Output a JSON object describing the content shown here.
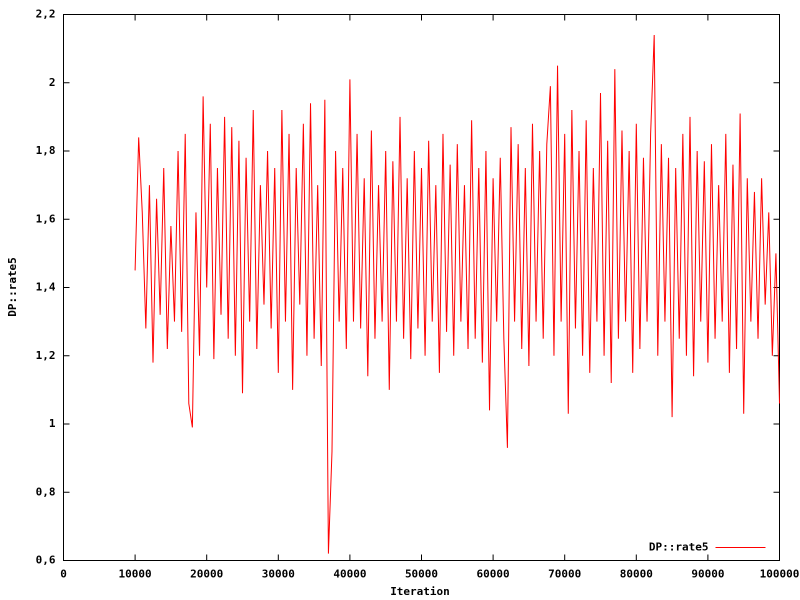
{
  "chart_data": {
    "type": "line",
    "xlabel": "Iteration",
    "ylabel": "DP::rate5",
    "x": [
      10000,
      10500,
      11000,
      11500,
      12000,
      12500,
      13000,
      13500,
      14000,
      14500,
      15000,
      15500,
      16000,
      16500,
      17000,
      17500,
      18000,
      18500,
      19000,
      19500,
      20000,
      20500,
      21000,
      21500,
      22000,
      22500,
      23000,
      23500,
      24000,
      24500,
      25000,
      25500,
      26000,
      26500,
      27000,
      27500,
      28000,
      28500,
      29000,
      29500,
      30000,
      30500,
      31000,
      31500,
      32000,
      32500,
      33000,
      33500,
      34000,
      34500,
      35000,
      35500,
      36000,
      36500,
      37000,
      37500,
      38000,
      38500,
      39000,
      39500,
      40000,
      40500,
      41000,
      41500,
      42000,
      42500,
      43000,
      43500,
      44000,
      44500,
      45000,
      45500,
      46000,
      46500,
      47000,
      47500,
      48000,
      48500,
      49000,
      49500,
      50000,
      50500,
      51000,
      51500,
      52000,
      52500,
      53000,
      53500,
      54000,
      54500,
      55000,
      55500,
      56000,
      56500,
      57000,
      57500,
      58000,
      58500,
      59000,
      59500,
      60000,
      60500,
      61000,
      61500,
      62000,
      62500,
      63000,
      63500,
      64000,
      64500,
      65000,
      65500,
      66000,
      66500,
      67000,
      67500,
      68000,
      68500,
      69000,
      69500,
      70000,
      70500,
      71000,
      71500,
      72000,
      72500,
      73000,
      73500,
      74000,
      74500,
      75000,
      75500,
      76000,
      76500,
      77000,
      77500,
      78000,
      78500,
      79000,
      79500,
      80000,
      80500,
      81000,
      81500,
      82000,
      82500,
      83000,
      83500,
      84000,
      84500,
      85000,
      85500,
      86000,
      86500,
      87000,
      87500,
      88000,
      88500,
      89000,
      89500,
      90000,
      90500,
      91000,
      91500,
      92000,
      92500,
      93000,
      93500,
      94000,
      94500,
      95000,
      95500,
      96000,
      96500,
      97000,
      97500,
      98000,
      98500,
      99000,
      99500,
      100000
    ],
    "series": [
      {
        "name": "DP::rate5",
        "color": "#ff0000",
        "values": [
          1.45,
          1.84,
          1.62,
          1.28,
          1.7,
          1.18,
          1.66,
          1.32,
          1.75,
          1.22,
          1.58,
          1.3,
          1.8,
          1.27,
          1.85,
          1.06,
          0.99,
          1.62,
          1.2,
          1.96,
          1.4,
          1.88,
          1.19,
          1.75,
          1.32,
          1.9,
          1.25,
          1.87,
          1.2,
          1.83,
          1.09,
          1.78,
          1.3,
          1.92,
          1.22,
          1.7,
          1.35,
          1.8,
          1.28,
          1.75,
          1.15,
          1.92,
          1.3,
          1.85,
          1.1,
          1.75,
          1.35,
          1.88,
          1.2,
          1.94,
          1.25,
          1.7,
          1.17,
          1.95,
          0.62,
          0.92,
          1.8,
          1.3,
          1.75,
          1.22,
          2.01,
          1.3,
          1.85,
          1.28,
          1.72,
          1.14,
          1.86,
          1.25,
          1.7,
          1.3,
          1.8,
          1.1,
          1.77,
          1.3,
          1.9,
          1.25,
          1.72,
          1.19,
          1.8,
          1.28,
          1.75,
          1.2,
          1.83,
          1.3,
          1.7,
          1.15,
          1.85,
          1.27,
          1.76,
          1.2,
          1.82,
          1.3,
          1.7,
          1.22,
          1.89,
          1.25,
          1.75,
          1.18,
          1.8,
          1.04,
          1.72,
          1.3,
          1.78,
          1.25,
          0.93,
          1.87,
          1.3,
          1.82,
          1.22,
          1.75,
          1.17,
          1.88,
          1.3,
          1.8,
          1.25,
          1.82,
          1.99,
          1.2,
          2.05,
          1.3,
          1.85,
          1.03,
          1.92,
          1.28,
          1.8,
          1.2,
          1.89,
          1.15,
          1.75,
          1.3,
          1.97,
          1.2,
          1.83,
          1.12,
          2.04,
          1.25,
          1.86,
          1.3,
          1.8,
          1.15,
          1.88,
          1.22,
          1.78,
          1.3,
          1.85,
          2.14,
          1.2,
          1.82,
          1.3,
          1.78,
          1.02,
          1.75,
          1.25,
          1.85,
          1.2,
          1.9,
          1.14,
          1.8,
          1.3,
          1.77,
          1.18,
          1.82,
          1.25,
          1.7,
          1.3,
          1.85,
          1.15,
          1.76,
          1.22,
          1.91,
          1.03,
          1.72,
          1.3,
          1.68,
          1.25,
          1.72,
          1.35,
          1.62,
          1.2,
          1.5,
          1.06
        ]
      }
    ],
    "xlim": [
      0,
      100000
    ],
    "xticks": [
      0,
      10000,
      20000,
      30000,
      40000,
      50000,
      60000,
      70000,
      80000,
      90000,
      100000
    ],
    "ylim": [
      0.6,
      2.2
    ],
    "yticks": [
      {
        "value": 0.6,
        "label": "0,6"
      },
      {
        "value": 0.8,
        "label": "0,8"
      },
      1,
      {
        "value": 1.2,
        "label": "1,2"
      },
      {
        "value": 1.4,
        "label": "1,4"
      },
      {
        "value": 1.6,
        "label": "1,6"
      },
      {
        "value": 1.8,
        "label": "1,8"
      },
      2,
      {
        "value": 2.2,
        "label": "2,2"
      }
    ],
    "grid": false,
    "legend": "bottom right"
  }
}
